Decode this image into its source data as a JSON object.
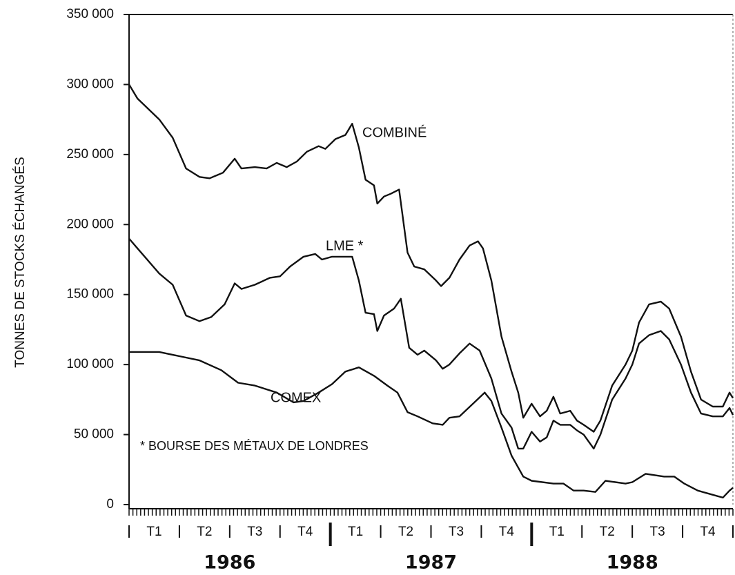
{
  "chart_data": {
    "type": "line",
    "y_label": "TONNES DE STOCKS ÉCHANGÉS",
    "quarters": [
      "T1",
      "T2",
      "T3",
      "T4",
      "T1",
      "T2",
      "T3",
      "T4",
      "T1",
      "T2",
      "T3",
      "T4"
    ],
    "years": [
      "1986",
      "1987",
      "1988"
    ],
    "xlim": [
      0,
      36
    ],
    "ylim": [
      0,
      350000
    ],
    "yticks": [
      {
        "value": 0,
        "label": "0"
      },
      {
        "value": 50000,
        "label": "50 000"
      },
      {
        "value": 100000,
        "label": "100 000"
      },
      {
        "value": 150000,
        "label": "150 000"
      },
      {
        "value": 200000,
        "label": "200 000"
      },
      {
        "value": 250000,
        "label": "250 000"
      },
      {
        "value": 300000,
        "label": "300 000"
      },
      {
        "value": 350000,
        "label": "350 000"
      }
    ],
    "annotations": [
      "COMBINÉ",
      "LME *",
      "COMEX",
      "* BOURSE DES MÉTAUX DE LONDRES"
    ],
    "series": [
      {
        "name": "COMBINÉ",
        "color": "#111111",
        "x": [
          0,
          0.5,
          1.8,
          2.6,
          3.4,
          4.2,
          4.8,
          5.6,
          6.3,
          6.7,
          7.5,
          8.2,
          8.8,
          9.4,
          10.0,
          10.6,
          11.3,
          11.7,
          12.3,
          12.9,
          13.3,
          13.7,
          14.1,
          14.6,
          14.8,
          15.2,
          15.6,
          16.1,
          16.6,
          17.0,
          17.6,
          18.3,
          18.6,
          19.1,
          19.7,
          20.3,
          20.8,
          21.1,
          21.6,
          22.2,
          22.8,
          23.2,
          23.5,
          24.0,
          24.5,
          24.9,
          25.3,
          25.7,
          26.3,
          26.7,
          27.1,
          27.7,
          28.1,
          28.8,
          29.6,
          30.0,
          30.4,
          31.0,
          31.7,
          32.2,
          32.9,
          33.5,
          34.1,
          34.8,
          35.4,
          35.8,
          36.0
        ],
        "values": [
          300000,
          290000,
          275000,
          262000,
          240000,
          234000,
          233000,
          237000,
          247000,
          240000,
          241000,
          240000,
          244000,
          241000,
          245000,
          252000,
          256000,
          254000,
          261000,
          264000,
          272000,
          255000,
          232000,
          228000,
          215000,
          220000,
          222000,
          225000,
          180000,
          170000,
          168000,
          160000,
          156000,
          162000,
          175000,
          185000,
          188000,
          183000,
          160000,
          120000,
          95000,
          80000,
          62000,
          72000,
          63000,
          67000,
          77000,
          65000,
          67000,
          60000,
          57000,
          52000,
          60000,
          85000,
          100000,
          110000,
          130000,
          143000,
          145000,
          140000,
          120000,
          95000,
          75000,
          70000,
          70000,
          80000,
          76000
        ]
      },
      {
        "name": "LME",
        "color": "#111111",
        "x": [
          0,
          0.5,
          1.8,
          2.6,
          3.4,
          4.2,
          4.9,
          5.7,
          6.3,
          6.7,
          7.5,
          8.4,
          9.0,
          9.6,
          10.4,
          11.1,
          11.5,
          12.1,
          13.3,
          13.7,
          14.1,
          14.6,
          14.8,
          15.2,
          15.8,
          16.2,
          16.7,
          17.2,
          17.6,
          18.3,
          18.7,
          19.1,
          19.7,
          20.3,
          20.9,
          21.6,
          22.2,
          22.8,
          23.2,
          23.5,
          24.0,
          24.5,
          24.9,
          25.3,
          25.7,
          26.3,
          26.7,
          27.1,
          27.7,
          28.1,
          28.8,
          29.6,
          30.0,
          30.4,
          31.0,
          31.7,
          32.2,
          32.9,
          33.5,
          34.1,
          34.8,
          35.4,
          35.8,
          36.0
        ],
        "values": [
          190000,
          183000,
          165000,
          157000,
          135000,
          131000,
          134000,
          143000,
          158000,
          154000,
          157000,
          162000,
          163000,
          170000,
          177000,
          179000,
          175000,
          177000,
          177000,
          160000,
          137000,
          136000,
          124000,
          135000,
          140000,
          147000,
          112000,
          107000,
          110000,
          103000,
          97000,
          100000,
          108000,
          115000,
          110000,
          90000,
          65000,
          55000,
          40000,
          40000,
          52000,
          45000,
          48000,
          60000,
          57000,
          57000,
          53000,
          50000,
          40000,
          50000,
          75000,
          90000,
          100000,
          115000,
          121000,
          124000,
          118000,
          100000,
          80000,
          65000,
          63000,
          63000,
          69000,
          64000
        ]
      },
      {
        "name": "COMEX",
        "color": "#111111",
        "x": [
          0,
          1.8,
          3.0,
          4.2,
          5.5,
          6.5,
          7.5,
          8.8,
          9.8,
          10.4,
          11.3,
          12.1,
          12.9,
          13.7,
          14.6,
          15.4,
          16.0,
          16.6,
          17.2,
          18.1,
          18.7,
          19.1,
          19.7,
          20.5,
          21.2,
          21.6,
          22.2,
          22.8,
          23.5,
          24.0,
          25.3,
          25.9,
          26.5,
          27.1,
          27.8,
          28.4,
          29.6,
          30.0,
          30.8,
          31.9,
          32.5,
          33.1,
          33.9,
          34.8,
          35.4,
          35.8,
          36.0
        ],
        "values": [
          109000,
          109000,
          106000,
          103000,
          96000,
          87000,
          85000,
          80000,
          73000,
          74000,
          80000,
          86000,
          95000,
          98000,
          92000,
          85000,
          80000,
          66000,
          63000,
          58000,
          57000,
          62000,
          63000,
          72000,
          80000,
          74000,
          55000,
          35000,
          20000,
          17000,
          15000,
          15000,
          10000,
          10000,
          9000,
          17000,
          15000,
          16000,
          22000,
          20000,
          20000,
          15000,
          10000,
          7000,
          5000,
          10000,
          12000
        ]
      }
    ]
  }
}
